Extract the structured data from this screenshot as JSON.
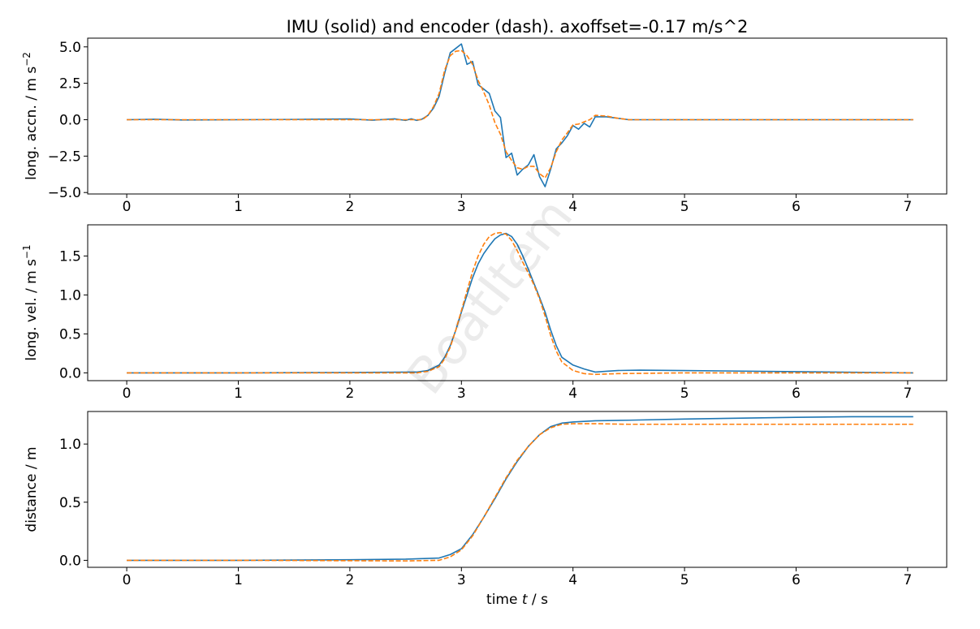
{
  "title": "IMU (solid) and encoder (dash). axoffset=-0.17 m/s^2",
  "watermark": "BoatItem",
  "colors": {
    "imu": "#1f77b4",
    "encoder": "#ff7f0e"
  },
  "chart_data": [
    {
      "type": "line",
      "ylabel": "long. accn. / m s",
      "ylabel_sup": "−2",
      "xlabel": "",
      "xlim": [
        -0.35,
        7.35
      ],
      "ylim": [
        -5.1,
        5.6
      ],
      "xticks": [
        0,
        1,
        2,
        3,
        4,
        5,
        6,
        7
      ],
      "xtick_labels": [
        "0",
        "1",
        "2",
        "3",
        "4",
        "5",
        "6",
        "7"
      ],
      "yticks": [
        -5.0,
        -2.5,
        0.0,
        2.5,
        5.0
      ],
      "ytick_labels": [
        "−5.0",
        "−2.5",
        "0.0",
        "2.5",
        "5.0"
      ],
      "series": [
        {
          "style": "solid",
          "x": [
            0,
            0.25,
            0.5,
            1.0,
            1.5,
            2.0,
            2.2,
            2.4,
            2.5,
            2.55,
            2.6,
            2.65,
            2.7,
            2.75,
            2.8,
            2.85,
            2.9,
            2.95,
            3.0,
            3.05,
            3.1,
            3.15,
            3.2,
            3.25,
            3.3,
            3.35,
            3.4,
            3.45,
            3.5,
            3.55,
            3.6,
            3.65,
            3.7,
            3.75,
            3.8,
            3.85,
            3.9,
            3.95,
            4.0,
            4.05,
            4.1,
            4.15,
            4.2,
            4.3,
            4.4,
            4.5,
            5.0,
            5.5,
            6.0,
            6.5,
            7.05
          ],
          "y": [
            0.0,
            0.03,
            -0.02,
            0.0,
            0.02,
            0.05,
            -0.03,
            0.06,
            -0.05,
            0.06,
            -0.05,
            0.05,
            0.3,
            0.8,
            1.6,
            3.2,
            4.6,
            4.9,
            5.2,
            3.8,
            4.0,
            2.4,
            2.1,
            1.8,
            0.6,
            0.15,
            -2.6,
            -2.3,
            -3.8,
            -3.4,
            -3.1,
            -2.4,
            -3.9,
            -4.6,
            -3.4,
            -2.0,
            -1.6,
            -1.1,
            -0.4,
            -0.65,
            -0.25,
            -0.5,
            0.2,
            0.2,
            0.1,
            0.0,
            0.0,
            0.0,
            0.0,
            0.0,
            0.0
          ]
        },
        {
          "style": "dashed",
          "x": [
            0,
            0.5,
            1.0,
            1.5,
            2.0,
            2.5,
            2.65,
            2.7,
            2.75,
            2.8,
            2.85,
            2.9,
            2.95,
            3.0,
            3.05,
            3.1,
            3.15,
            3.2,
            3.25,
            3.3,
            3.35,
            3.4,
            3.45,
            3.5,
            3.55,
            3.6,
            3.65,
            3.7,
            3.75,
            3.8,
            3.85,
            3.9,
            3.95,
            4.0,
            4.05,
            4.1,
            4.15,
            4.2,
            4.3,
            4.4,
            4.5,
            5.0,
            6.0,
            7.05
          ],
          "y": [
            0.0,
            0.0,
            0.0,
            0.0,
            0.0,
            0.0,
            0.0,
            0.3,
            0.9,
            1.8,
            3.4,
            4.4,
            4.7,
            4.75,
            4.4,
            3.8,
            2.7,
            1.9,
            1.0,
            -0.2,
            -1.0,
            -2.2,
            -2.8,
            -3.3,
            -3.4,
            -3.2,
            -3.2,
            -3.7,
            -4.0,
            -3.3,
            -2.2,
            -1.4,
            -0.9,
            -0.35,
            -0.3,
            -0.15,
            0.0,
            0.3,
            0.25,
            0.1,
            0.0,
            0.0,
            0.0,
            0.0
          ]
        }
      ]
    },
    {
      "type": "line",
      "ylabel": "long. vel. / m s",
      "ylabel_sup": "−1",
      "xlabel": "",
      "xlim": [
        -0.35,
        7.35
      ],
      "ylim": [
        -0.1,
        1.9
      ],
      "xticks": [
        0,
        1,
        2,
        3,
        4,
        5,
        6,
        7
      ],
      "xtick_labels": [
        "0",
        "1",
        "2",
        "3",
        "4",
        "5",
        "6",
        "7"
      ],
      "yticks": [
        0.0,
        0.5,
        1.0,
        1.5
      ],
      "ytick_labels": [
        "0.0",
        "0.5",
        "1.0",
        "1.5"
      ],
      "series": [
        {
          "style": "solid",
          "x": [
            0,
            1.0,
            2.0,
            2.6,
            2.7,
            2.8,
            2.85,
            2.9,
            2.95,
            3.0,
            3.05,
            3.1,
            3.15,
            3.2,
            3.25,
            3.3,
            3.35,
            3.4,
            3.45,
            3.5,
            3.55,
            3.6,
            3.65,
            3.7,
            3.75,
            3.8,
            3.85,
            3.9,
            4.0,
            4.1,
            4.2,
            4.3,
            4.4,
            4.6,
            5.0,
            6.0,
            7.05
          ],
          "y": [
            0.0,
            0.0,
            0.005,
            0.01,
            0.03,
            0.1,
            0.2,
            0.35,
            0.55,
            0.78,
            1.0,
            1.22,
            1.4,
            1.53,
            1.63,
            1.72,
            1.77,
            1.79,
            1.75,
            1.65,
            1.5,
            1.33,
            1.15,
            0.97,
            0.78,
            0.55,
            0.35,
            0.2,
            0.1,
            0.05,
            0.01,
            0.02,
            0.03,
            0.035,
            0.03,
            0.015,
            0.0
          ]
        },
        {
          "style": "dashed",
          "x": [
            0,
            1.0,
            2.0,
            2.6,
            2.7,
            2.8,
            2.85,
            2.9,
            2.95,
            3.0,
            3.05,
            3.1,
            3.15,
            3.2,
            3.25,
            3.3,
            3.35,
            3.4,
            3.45,
            3.5,
            3.55,
            3.6,
            3.65,
            3.7,
            3.75,
            3.8,
            3.85,
            3.9,
            4.0,
            4.1,
            4.2,
            4.4,
            5.0,
            6.0,
            7.05
          ],
          "y": [
            0.0,
            0.0,
            0.0,
            0.0,
            0.02,
            0.08,
            0.18,
            0.33,
            0.55,
            0.8,
            1.05,
            1.3,
            1.5,
            1.65,
            1.75,
            1.79,
            1.8,
            1.78,
            1.7,
            1.57,
            1.42,
            1.28,
            1.13,
            0.95,
            0.73,
            0.48,
            0.28,
            0.14,
            0.03,
            -0.01,
            -0.02,
            -0.01,
            0.0,
            0.0,
            0.0
          ]
        }
      ]
    },
    {
      "type": "line",
      "ylabel": "distance / m",
      "xlabel": "time t / s",
      "xlabel_parts": [
        "time ",
        "t",
        " / s"
      ],
      "xlim": [
        -0.35,
        7.35
      ],
      "ylim": [
        -0.06,
        1.28
      ],
      "xticks": [
        0,
        1,
        2,
        3,
        4,
        5,
        6,
        7
      ],
      "xtick_labels": [
        "0",
        "1",
        "2",
        "3",
        "4",
        "5",
        "6",
        "7"
      ],
      "yticks": [
        0.0,
        0.5,
        1.0
      ],
      "ytick_labels": [
        "0.0",
        "0.5",
        "1.0"
      ],
      "series": [
        {
          "style": "solid",
          "x": [
            0,
            1.0,
            2.0,
            2.5,
            2.8,
            2.9,
            3.0,
            3.1,
            3.2,
            3.3,
            3.4,
            3.5,
            3.6,
            3.7,
            3.8,
            3.9,
            4.0,
            4.2,
            4.5,
            5.0,
            6.0,
            6.5,
            7.05
          ],
          "y": [
            0.0,
            0.0,
            0.005,
            0.01,
            0.02,
            0.05,
            0.1,
            0.22,
            0.37,
            0.53,
            0.7,
            0.85,
            0.98,
            1.08,
            1.15,
            1.18,
            1.19,
            1.2,
            1.205,
            1.215,
            1.23,
            1.235,
            1.235
          ]
        },
        {
          "style": "dashed",
          "x": [
            0,
            1.0,
            2.0,
            2.5,
            2.8,
            2.9,
            3.0,
            3.1,
            3.2,
            3.3,
            3.4,
            3.5,
            3.6,
            3.7,
            3.8,
            3.9,
            4.0,
            4.2,
            4.5,
            5.0,
            6.0,
            7.05
          ],
          "y": [
            0.0,
            0.0,
            -0.003,
            -0.005,
            0.0,
            0.03,
            0.09,
            0.21,
            0.37,
            0.54,
            0.71,
            0.86,
            0.98,
            1.08,
            1.14,
            1.17,
            1.175,
            1.175,
            1.17,
            1.17,
            1.17,
            1.17
          ]
        }
      ]
    }
  ]
}
